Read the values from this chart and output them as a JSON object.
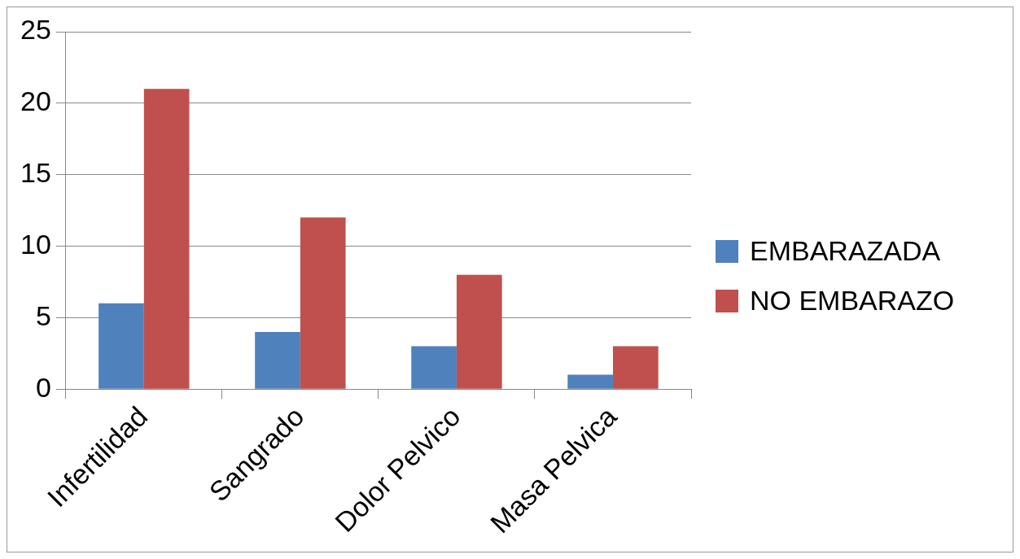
{
  "chart_data": {
    "type": "bar",
    "categories": [
      "Infertilidad",
      "Sangrado",
      "Dolor Pelvico",
      "Masa Pelvica"
    ],
    "series": [
      {
        "name": "EMBARAZADA",
        "color": "#4f81bd",
        "values": [
          6,
          4,
          3,
          1
        ]
      },
      {
        "name": "NO EMBARAZO",
        "color": "#c0504d",
        "values": [
          21,
          12,
          8,
          3
        ]
      }
    ],
    "ylim": [
      0,
      25
    ],
    "yticks": [
      0,
      5,
      10,
      15,
      20,
      25
    ],
    "grid": "y",
    "legend": "right"
  }
}
